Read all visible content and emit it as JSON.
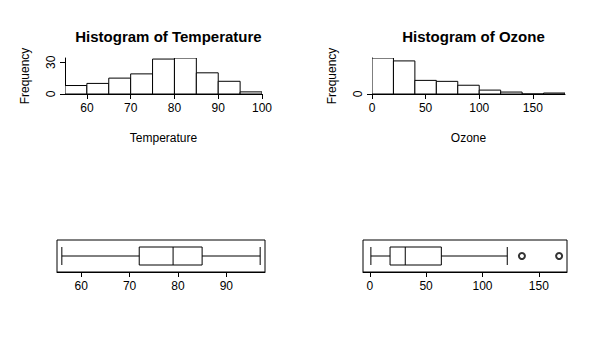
{
  "chart_data": [
    {
      "type": "histogram",
      "title": "Histogram of Temperature",
      "xlabel": "Temperature",
      "ylabel": "Frequency",
      "bins": [
        55,
        60,
        65,
        70,
        75,
        80,
        85,
        90,
        95,
        100
      ],
      "values": [
        8,
        10,
        15,
        19,
        33,
        34,
        20,
        12,
        2
      ],
      "color": "#ffffff",
      "xlim": [
        55,
        100
      ],
      "xticks": [
        60,
        70,
        80,
        90,
        100
      ],
      "ylim": [
        0,
        34
      ],
      "yticks": [
        0,
        30
      ]
    },
    {
      "type": "histogram",
      "title": "Histogram of Ozone",
      "xlabel": "Ozone",
      "ylabel": "Frequency",
      "bins": [
        0,
        20,
        40,
        60,
        80,
        100,
        120,
        140,
        160,
        180
      ],
      "values": [
        37,
        34,
        14,
        13,
        9,
        4,
        2,
        0,
        1
      ],
      "color": "#ffffff",
      "xlim": [
        0,
        180
      ],
      "xticks": [
        0,
        50,
        100,
        150
      ],
      "ylim": [
        0,
        37
      ],
      "yticks": [
        0
      ]
    },
    {
      "type": "boxplot",
      "orientation": "horizontal",
      "values": [
        56,
        72,
        79,
        85,
        97
      ],
      "outliers": [],
      "color": "#ffffff",
      "xlim": [
        55,
        98
      ],
      "xticks": [
        60,
        70,
        80,
        90
      ]
    },
    {
      "type": "boxplot",
      "orientation": "horizontal",
      "values": [
        1,
        18,
        31.5,
        63.5,
        122
      ],
      "outliers": [
        135,
        168
      ],
      "color": "#ffffff",
      "xlim": [
        -6,
        175
      ],
      "xticks": [
        0,
        50,
        100,
        150
      ]
    }
  ]
}
